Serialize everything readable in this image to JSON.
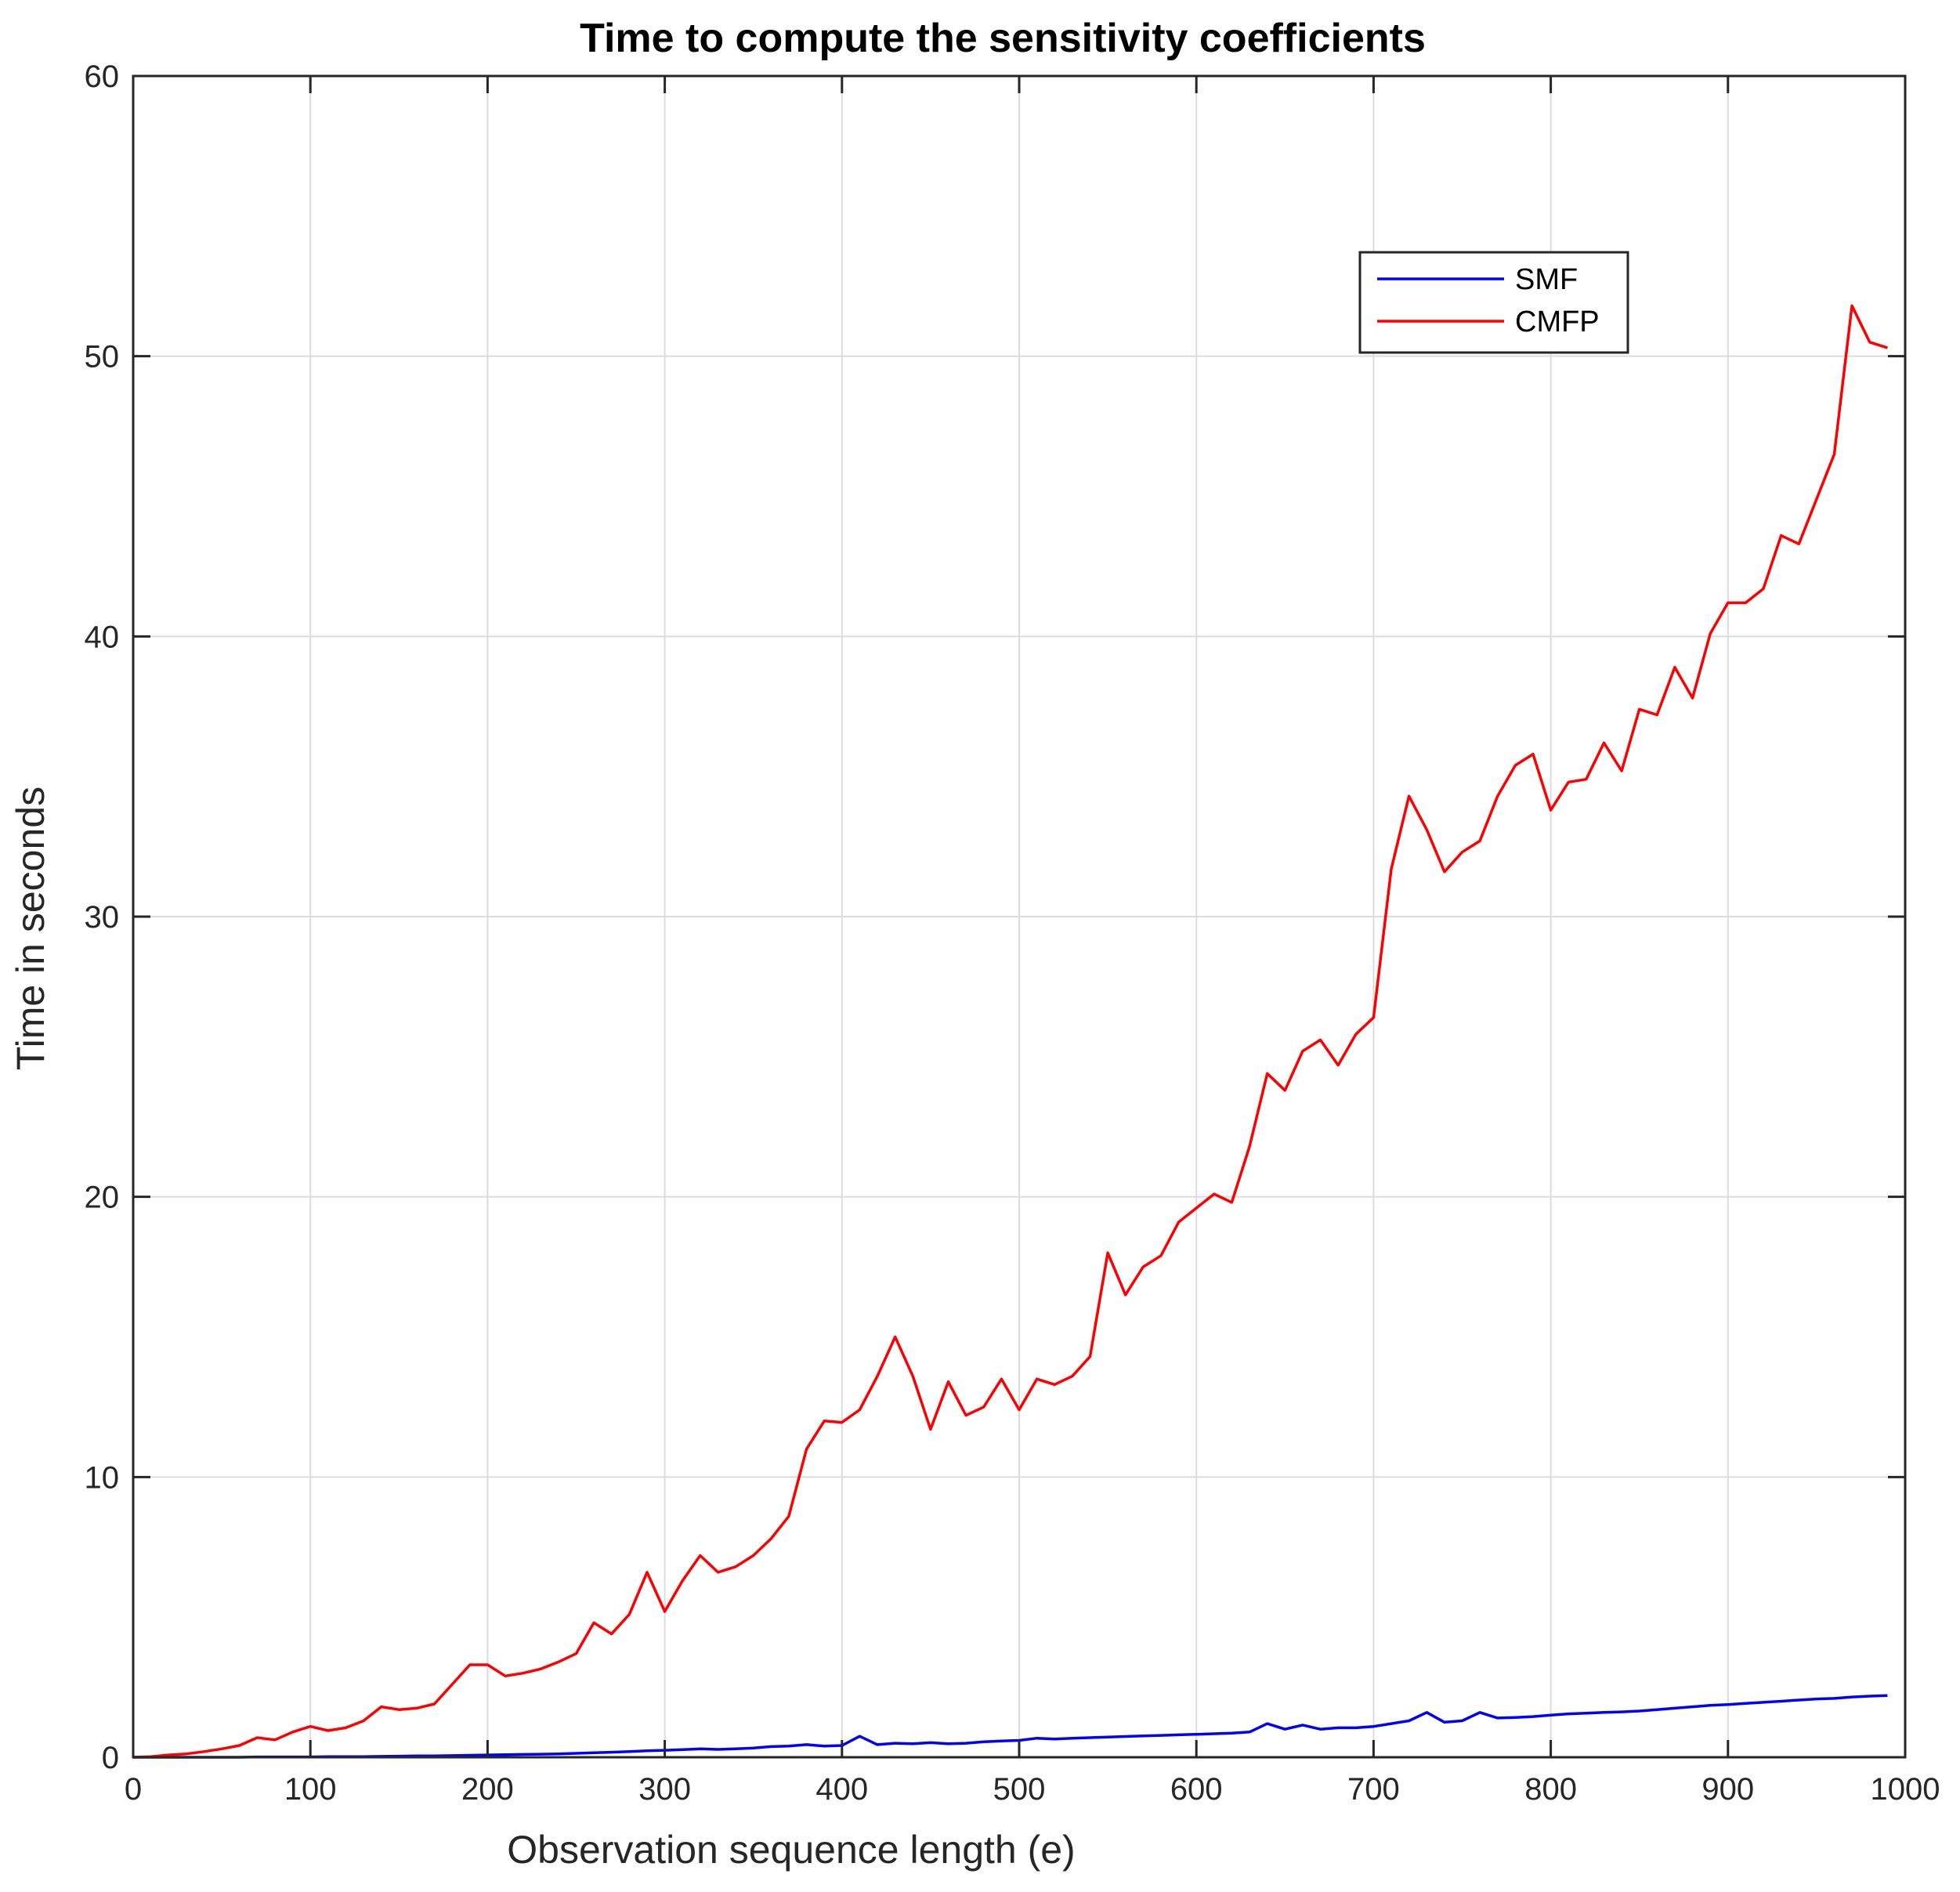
{
  "chart_data": {
    "type": "line",
    "title": "Time to compute the sensitivity coefficients",
    "xlabel": "Observation sequence length (e)",
    "ylabel": "Time in seconds",
    "xlim": [
      0,
      1000
    ],
    "ylim": [
      0,
      60
    ],
    "xticks": [
      0,
      100,
      200,
      300,
      400,
      500,
      600,
      700,
      800,
      900,
      1000
    ],
    "yticks": [
      0,
      10,
      20,
      30,
      40,
      50,
      60
    ],
    "xtick_labels": [
      "0",
      "100",
      "200",
      "300",
      "400",
      "500",
      "600",
      "700",
      "800",
      "900",
      "1000"
    ],
    "ytick_labels": [
      "0",
      "10",
      "20",
      "30",
      "40",
      "50",
      "60"
    ],
    "grid": true,
    "legend_position": "top-right",
    "series": [
      {
        "name": "SMF",
        "color": "#0000ff",
        "x": [
          0,
          10,
          20,
          30,
          40,
          50,
          60,
          70,
          80,
          90,
          100,
          110,
          120,
          130,
          140,
          150,
          160,
          170,
          180,
          190,
          200,
          210,
          220,
          230,
          240,
          250,
          260,
          270,
          280,
          290,
          300,
          310,
          320,
          330,
          340,
          350,
          360,
          370,
          380,
          390,
          400,
          410,
          420,
          430,
          440,
          450,
          460,
          470,
          480,
          490,
          500,
          510,
          520,
          530,
          540,
          550,
          560,
          570,
          580,
          590,
          600,
          610,
          620,
          630,
          640,
          650,
          660,
          670,
          680,
          690,
          700,
          710,
          720,
          730,
          740,
          750,
          760,
          770,
          780,
          790,
          800,
          810,
          820,
          830,
          840,
          850,
          860,
          870,
          880,
          890,
          900,
          910,
          920,
          930,
          940,
          950,
          960,
          970,
          980,
          990
        ],
        "y": [
          0,
          0,
          0,
          0,
          0,
          0,
          0,
          0.01,
          0.01,
          0.01,
          0.01,
          0.02,
          0.02,
          0.02,
          0.03,
          0.04,
          0.05,
          0.05,
          0.06,
          0.07,
          0.08,
          0.09,
          0.1,
          0.11,
          0.12,
          0.14,
          0.16,
          0.18,
          0.2,
          0.23,
          0.25,
          0.27,
          0.3,
          0.28,
          0.3,
          0.33,
          0.38,
          0.4,
          0.45,
          0.4,
          0.42,
          0.75,
          0.45,
          0.5,
          0.48,
          0.52,
          0.48,
          0.5,
          0.55,
          0.58,
          0.6,
          0.68,
          0.65,
          0.68,
          0.7,
          0.72,
          0.74,
          0.76,
          0.78,
          0.8,
          0.82,
          0.84,
          0.86,
          0.9,
          1.2,
          1.0,
          1.15,
          1.0,
          1.05,
          1.05,
          1.1,
          1.2,
          1.3,
          1.6,
          1.25,
          1.3,
          1.6,
          1.4,
          1.42,
          1.45,
          1.5,
          1.55,
          1.57,
          1.6,
          1.62,
          1.65,
          1.7,
          1.75,
          1.8,
          1.85,
          1.88,
          1.92,
          1.96,
          2.0,
          2.04,
          2.08,
          2.1,
          2.15,
          2.18,
          2.2
        ]
      },
      {
        "name": "CMFP",
        "color": "#ff0000",
        "x": [
          0,
          10,
          20,
          30,
          40,
          50,
          60,
          70,
          80,
          90,
          100,
          110,
          120,
          130,
          140,
          150,
          160,
          170,
          180,
          190,
          200,
          210,
          220,
          230,
          240,
          250,
          260,
          270,
          280,
          290,
          300,
          310,
          320,
          330,
          340,
          350,
          360,
          370,
          380,
          390,
          400,
          410,
          420,
          430,
          440,
          450,
          460,
          470,
          480,
          490,
          500,
          510,
          520,
          530,
          540,
          550,
          560,
          570,
          580,
          590,
          600,
          610,
          620,
          630,
          640,
          650,
          660,
          670,
          680,
          690,
          700,
          710,
          720,
          730,
          740,
          750,
          760,
          770,
          780,
          790,
          800,
          810,
          820,
          830,
          840,
          850,
          860,
          870,
          880,
          890,
          900,
          910,
          920,
          930,
          940,
          950,
          960,
          970,
          980,
          990
        ],
        "y": [
          0,
          0.02,
          0.08,
          0.12,
          0.2,
          0.3,
          0.42,
          0.7,
          0.62,
          0.9,
          1.1,
          0.95,
          1.05,
          1.3,
          1.8,
          1.7,
          1.75,
          1.9,
          2.6,
          3.3,
          3.3,
          2.9,
          3.0,
          3.15,
          3.4,
          3.7,
          4.8,
          4.4,
          5.1,
          6.6,
          5.2,
          6.3,
          7.2,
          6.6,
          6.8,
          7.2,
          7.8,
          8.6,
          11.0,
          12.0,
          11.95,
          12.4,
          13.6,
          15.0,
          13.6,
          11.7,
          13.4,
          12.2,
          12.5,
          13.5,
          12.4,
          13.5,
          13.3,
          13.6,
          14.3,
          18.0,
          16.5,
          17.5,
          17.9,
          19.1,
          19.6,
          20.1,
          19.8,
          21.8,
          24.4,
          23.8,
          25.2,
          25.6,
          24.7,
          25.8,
          26.4,
          31.7,
          34.3,
          33.1,
          31.6,
          32.3,
          32.7,
          34.3,
          35.4,
          35.8,
          33.8,
          34.8,
          34.9,
          36.2,
          35.2,
          37.4,
          37.2,
          38.9,
          37.8,
          40.1,
          41.2,
          41.2,
          41.7,
          43.6,
          43.3,
          44.9,
          46.5,
          51.8,
          50.5,
          50.3
        ]
      }
    ]
  }
}
